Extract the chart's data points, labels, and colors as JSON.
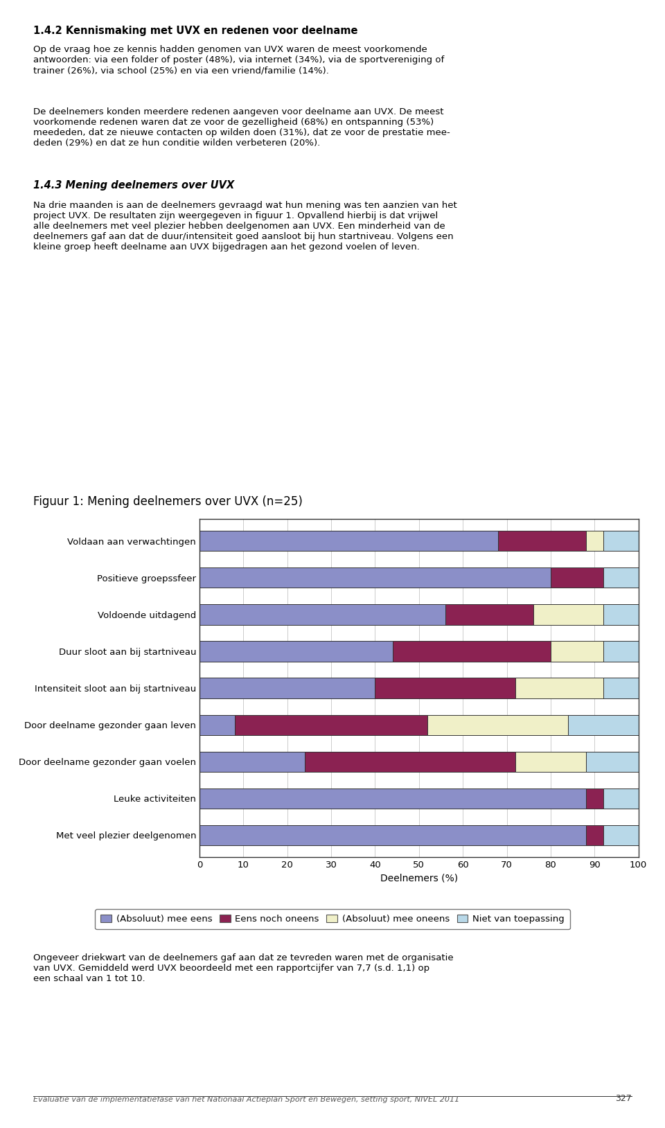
{
  "title": "Figuur 1: Mening deelnemers over UVX (n=25)",
  "categories": [
    "Met veel plezier deelgenomen",
    "Leuke activiteiten",
    "Door deelname gezonder gaan voelen",
    "Door deelname gezonder gaan leven",
    "Intensiteit sloot aan bij startniveau",
    "Duur sloot aan bij startniveau",
    "Voldoende uitdagend",
    "Positieve groepssfeer",
    "Voldaan aan verwachtingen"
  ],
  "series": [
    {
      "label": "(Absoluut) mee eens",
      "color": "#8b8fc8",
      "values": [
        88,
        88,
        24,
        8,
        40,
        44,
        56,
        80,
        68
      ]
    },
    {
      "label": "Eens noch oneens",
      "color": "#8b2252",
      "values": [
        4,
        4,
        48,
        44,
        32,
        36,
        20,
        12,
        20
      ]
    },
    {
      "label": "(Absoluut) mee oneens",
      "color": "#f0f0c8",
      "values": [
        0,
        0,
        16,
        32,
        20,
        12,
        16,
        0,
        4
      ]
    },
    {
      "label": "Niet van toepassing",
      "color": "#b8d8e8",
      "values": [
        8,
        8,
        12,
        16,
        8,
        8,
        8,
        8,
        8
      ]
    }
  ],
  "xlabel": "Deelnemers (%)",
  "xlim": [
    0,
    100
  ],
  "xticks": [
    0,
    10,
    20,
    30,
    40,
    50,
    60,
    70,
    80,
    90,
    100
  ],
  "background_color": "#ffffff",
  "bar_height": 0.55,
  "legend_edgecolor": "#555555",
  "axis_linecolor": "#333333",
  "grid_color": "#cccccc",
  "title_fontsize": 12,
  "axis_label_fontsize": 10,
  "tick_fontsize": 9.5,
  "category_fontsize": 9.5,
  "legend_fontsize": 9.5,
  "text_fontsize": 9.5,
  "heading_fontsize": 10.5,
  "footer_fontsize": 8
}
